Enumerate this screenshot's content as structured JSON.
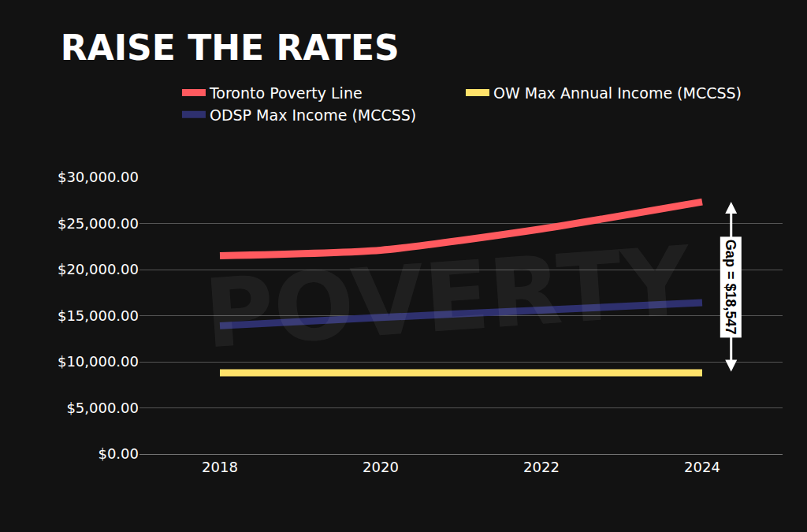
{
  "chart_data": {
    "type": "line",
    "title": "RAISE THE RATES",
    "categories": [
      "2018",
      "2020",
      "2022",
      "2024"
    ],
    "series": [
      {
        "name": "Toronto Poverty Line",
        "color": "#ff5a5f",
        "values": [
          21500,
          22100,
          24400,
          27343
        ]
      },
      {
        "name": "OW Max Annual Income (MCCSS)",
        "color": "#ffe26a",
        "values": [
          8796,
          8796,
          8796,
          8796
        ]
      },
      {
        "name": "ODSP Max Income (MCCSS)",
        "color": "#2e306e",
        "values": [
          13900,
          14800,
          15600,
          16400
        ]
      }
    ],
    "ylim": [
      0,
      30000
    ],
    "yticks": [
      {
        "value": 0,
        "label": "$0.00"
      },
      {
        "value": 5000,
        "label": "$5,000.00"
      },
      {
        "value": 10000,
        "label": "$10,000.00"
      },
      {
        "value": 15000,
        "label": "$15,000.00"
      },
      {
        "value": 20000,
        "label": "$20,000.00"
      },
      {
        "value": 25000,
        "label": "$25,000.00"
      },
      {
        "value": 30000,
        "label": "$30,000.00"
      }
    ],
    "grid": true,
    "legend": "top",
    "annotations": [
      {
        "text": "Gap = $18,547"
      }
    ],
    "background_text": "POVERTY"
  }
}
